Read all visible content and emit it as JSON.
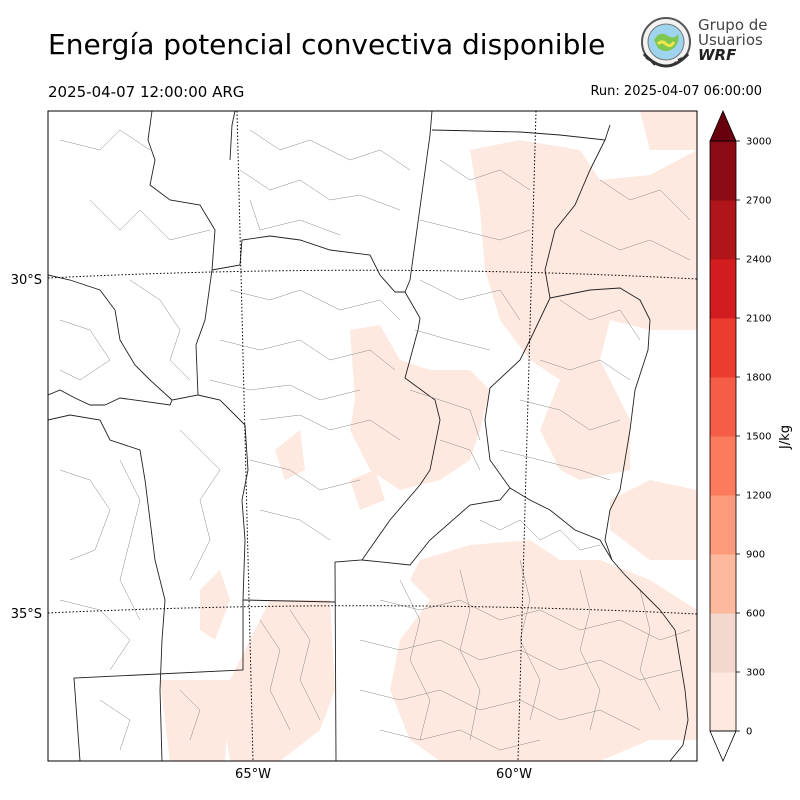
{
  "header": {
    "title": "Energía potencial convectiva disponible",
    "valid_time": "2025-04-07 12:00:00 ARG",
    "run_time": "Run: 2025-04-07 06:00:00"
  },
  "logo": {
    "line1": "Grupo de",
    "line2": "Usuarios",
    "line3": "WRF"
  },
  "map": {
    "lat_labels": [
      "30°S",
      "35°S"
    ],
    "lon_labels": [
      "65°W",
      "60°W"
    ]
  },
  "colorbar": {
    "unit": "J/kg",
    "ticks": [
      "0",
      "300",
      "600",
      "900",
      "1200",
      "1500",
      "1800",
      "2100",
      "2400",
      "2700",
      "3000"
    ],
    "colors": [
      "#fee9e0",
      "#f3d8cf",
      "#fcb99d",
      "#fc9a7d",
      "#fb7b5c",
      "#f65d46",
      "#ec3b2f",
      "#d21c1f",
      "#b01519",
      "#8a0b13",
      "#68000d"
    ]
  }
}
